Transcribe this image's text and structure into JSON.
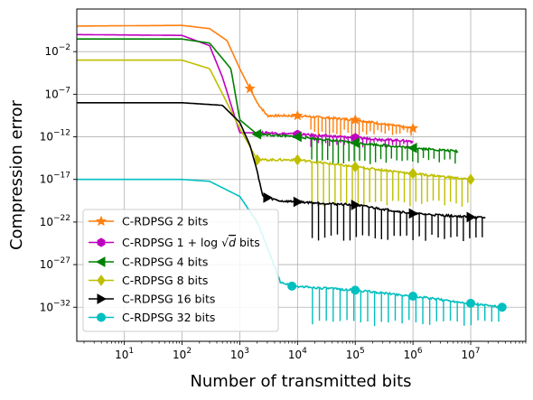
{
  "chart_data": {
    "type": "line",
    "xlabel": "Number of transmitted bits",
    "ylabel": "Compression error",
    "x_scale": "log",
    "y_scale": "log",
    "xlim": [
      1.5,
      90000000
    ],
    "ylim": [
      1e-36,
      1000.0
    ],
    "grid": true,
    "legend_position": "lower-left",
    "x_ticks": [
      {
        "value": 10,
        "base": "10",
        "exp": "1"
      },
      {
        "value": 100,
        "base": "10",
        "exp": "2"
      },
      {
        "value": 1000,
        "base": "10",
        "exp": "3"
      },
      {
        "value": 10000,
        "base": "10",
        "exp": "4"
      },
      {
        "value": 100000,
        "base": "10",
        "exp": "5"
      },
      {
        "value": 1000000,
        "base": "10",
        "exp": "6"
      },
      {
        "value": 10000000,
        "base": "10",
        "exp": "7"
      }
    ],
    "y_ticks": [
      {
        "value": 0.01,
        "base": "10",
        "exp": "−2"
      },
      {
        "value": 1e-07,
        "base": "10",
        "exp": "−7"
      },
      {
        "value": 1e-12,
        "base": "10",
        "exp": "−12"
      },
      {
        "value": 1e-17,
        "base": "10",
        "exp": "−17"
      },
      {
        "value": 1e-22,
        "base": "10",
        "exp": "−22"
      },
      {
        "value": 1e-27,
        "base": "10",
        "exp": "−27"
      },
      {
        "value": 1e-32,
        "base": "10",
        "exp": "−32"
      }
    ],
    "series": [
      {
        "name": "C-RDPSG 2 bits",
        "color": "#ff7f0e",
        "marker": "star",
        "x": [
          1.5,
          100,
          300,
          600,
          1000,
          2000,
          3000,
          10000,
          100000,
          1000000
        ],
        "y": [
          10,
          12,
          5,
          0.2,
          0.0001,
          1e-08,
          3e-10,
          3e-10,
          1e-10,
          1e-11
        ],
        "spike_low": 2e-12,
        "marker_x": [
          1500,
          10000,
          100000,
          1000000
        ]
      },
      {
        "name": "C-RDPSG $1+\\log\\sqrt{d}$ bits",
        "label_prefix": "C-RDPSG 1 + log",
        "label_root": "d",
        "label_suffix": "bits",
        "color": "#bf00bf",
        "marker": "hexagon",
        "x": [
          1.5,
          100,
          300,
          500,
          1000,
          3000,
          10000,
          100000,
          1000000
        ],
        "y": [
          1,
          0.8,
          0.05,
          1e-05,
          3e-12,
          3e-12,
          2e-12,
          8e-13,
          3e-13
        ],
        "spike_low": 1e-13,
        "marker_x": [
          10000,
          100000
        ]
      },
      {
        "name": "C-RDPSG 4 bits",
        "color": "#008000",
        "marker": "triangle-left",
        "x": [
          1.5,
          100,
          300,
          700,
          1000,
          2000,
          10000,
          100000,
          1000000,
          6000000
        ],
        "y": [
          0.3,
          0.3,
          0.1,
          0.0001,
          1e-10,
          2e-12,
          1e-12,
          2e-13,
          5e-14,
          2e-14
        ],
        "spike_low": 1e-15,
        "marker_x": [
          2000,
          10000,
          100000,
          1000000
        ]
      },
      {
        "name": "C-RDPSG 8 bits",
        "color": "#bfbf00",
        "marker": "diamond",
        "x": [
          1.5,
          100,
          300,
          600,
          1000,
          2000,
          10000,
          100000,
          1000000,
          10000000
        ],
        "y": [
          0.001,
          0.001,
          0.0001,
          1e-08,
          1e-11,
          2e-15,
          2e-15,
          3e-16,
          5e-17,
          1e-17
        ],
        "spike_low": 1e-20,
        "marker_x": [
          2000,
          10000,
          100000,
          1000000,
          10000000
        ]
      },
      {
        "name": "C-RDPSG 16 bits",
        "color": "#000000",
        "marker": "triangle-right",
        "x": [
          1.5,
          100,
          500,
          1000,
          1500,
          2000,
          2500,
          5000,
          100000,
          1000000,
          18000000
        ],
        "y": [
          1e-08,
          1e-08,
          5e-09,
          5e-11,
          1e-13,
          1e-16,
          1e-19,
          3e-20,
          1e-20,
          1e-21,
          3e-22
        ],
        "spike_low": 1e-24,
        "marker_x": [
          3000,
          10000,
          100000,
          1000000,
          10000000
        ]
      },
      {
        "name": "C-RDPSG 32 bits",
        "color": "#00bfbf",
        "marker": "circle",
        "x": [
          1.5,
          100,
          300,
          1000,
          2000,
          3000,
          5000,
          8000,
          100000,
          1000000,
          35000000
        ],
        "y": [
          1e-17,
          1e-17,
          6e-18,
          1e-19,
          1e-22,
          1e-25,
          1e-29,
          3e-30,
          1e-30,
          2e-31,
          1e-32
        ],
        "spike_low": 1e-34,
        "marker_x": [
          8000,
          100000,
          1000000,
          10000000,
          35000000
        ]
      }
    ]
  }
}
